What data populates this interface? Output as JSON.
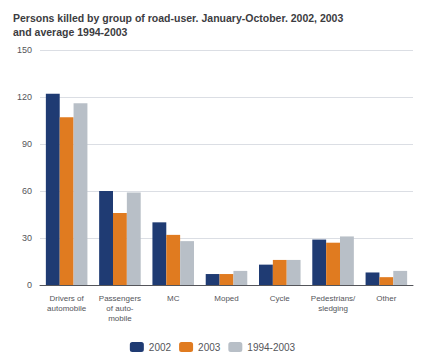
{
  "chart_data": {
    "type": "bar",
    "title": "Persons killed by group of road-user. January-October. 2002, 2003\nand average 1994-2003",
    "categories": [
      "Drivers of\nautomobile",
      "Passengers\nof auto-\nmobile",
      "MC",
      "Moped",
      "Cycle",
      "Pedestrians/\nsledging",
      "Other"
    ],
    "series": [
      {
        "name": "2002",
        "color": "#1f3b73",
        "values": [
          122,
          60,
          40,
          7,
          13,
          29,
          8
        ]
      },
      {
        "name": "2003",
        "color": "#e07b20",
        "values": [
          107,
          46,
          32,
          7,
          16,
          27,
          5
        ]
      },
      {
        "name": "1994-2003",
        "color": "#b8bfc7",
        "values": [
          116,
          59,
          28,
          9,
          16,
          31,
          9
        ]
      }
    ],
    "ylim": [
      0,
      150
    ],
    "yticks": [
      0,
      30,
      60,
      90,
      120,
      150
    ],
    "grid": true,
    "legend": "bottom"
  }
}
